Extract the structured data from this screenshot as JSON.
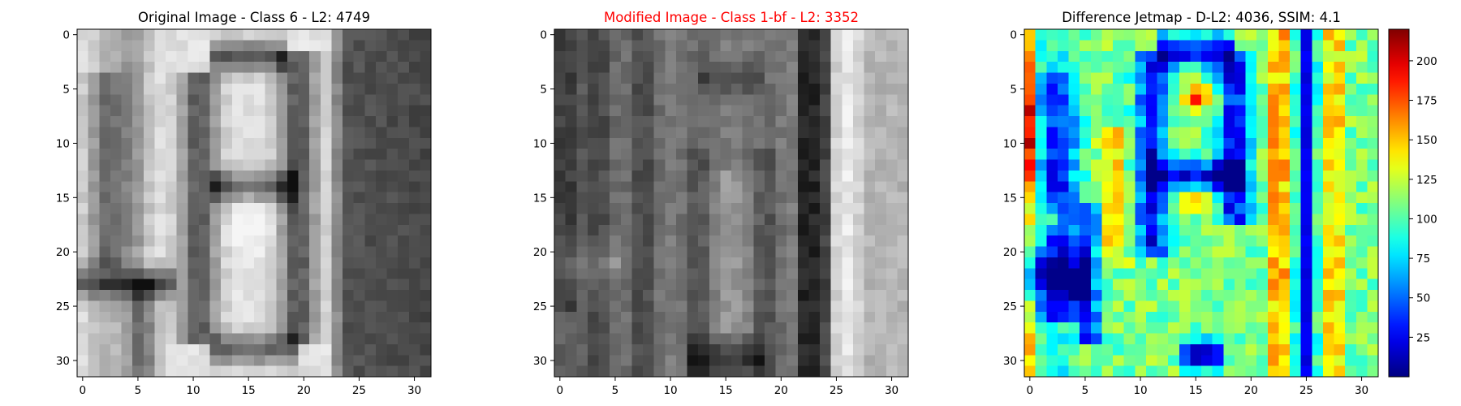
{
  "chart_data": [
    {
      "type": "heatmap",
      "title": "Original Image - Class 6 - L2: 4749",
      "title_color": "#000000",
      "colormap": "gray",
      "grid_size": 32,
      "xlim": [
        -0.5,
        31.5
      ],
      "ylim": [
        31.5,
        -0.5
      ],
      "x_ticks": [
        0,
        5,
        10,
        15,
        20,
        25,
        30
      ],
      "y_ticks": [
        0,
        5,
        10,
        15,
        20,
        25,
        30
      ],
      "grid": false
    },
    {
      "type": "heatmap",
      "title": "Modified Image - Class 1-bf - L2: 3352",
      "title_color": "#ff0000",
      "colormap": "gray",
      "grid_size": 32,
      "xlim": [
        -0.5,
        31.5
      ],
      "ylim": [
        31.5,
        -0.5
      ],
      "x_ticks": [
        0,
        5,
        10,
        15,
        20,
        25,
        30
      ],
      "y_ticks": [
        0,
        5,
        10,
        15,
        20,
        25,
        30
      ],
      "grid": false
    },
    {
      "type": "heatmap",
      "title": "Difference Jetmap - D-L2: 4036, SSIM: 4.1",
      "title_color": "#000000",
      "colormap": "jet",
      "grid_size": 32,
      "xlim": [
        -0.5,
        31.5
      ],
      "ylim": [
        31.5,
        -0.5
      ],
      "x_ticks": [
        0,
        5,
        10,
        15,
        20,
        25,
        30
      ],
      "y_ticks": [
        0,
        5,
        10,
        15,
        20,
        25,
        30
      ],
      "grid": false,
      "colorbar": {
        "range": [
          0,
          220
        ],
        "ticks": [
          25,
          50,
          75,
          100,
          125,
          150,
          175,
          200
        ]
      }
    }
  ]
}
